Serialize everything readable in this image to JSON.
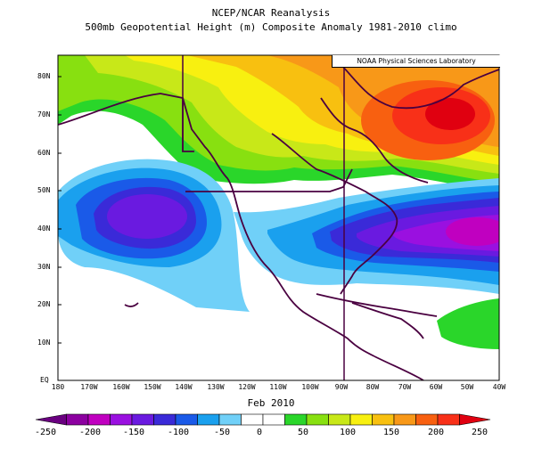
{
  "title_line1": "NCEP/NCAR Reanalysis",
  "title_line2": "500mb Geopotential Height (m) Composite Anomaly 1981-2010 climo",
  "credit": "NOAA Physical Sciences Laboratory",
  "date": "Feb 2010",
  "lat_labels": [
    "80N",
    "70N",
    "60N",
    "50N",
    "40N",
    "30N",
    "20N",
    "10N",
    "EQ"
  ],
  "lon_labels": [
    "180",
    "170W",
    "160W",
    "150W",
    "140W",
    "130W",
    "120W",
    "110W",
    "100W",
    "90W",
    "80W",
    "70W",
    "60W",
    "50W",
    "40W"
  ],
  "colorbar": {
    "labels": [
      "-250",
      "-200",
      "-150",
      "-100",
      "-50",
      "0",
      "50",
      "100",
      "150",
      "200",
      "250"
    ],
    "colors": [
      "#6a0080",
      "#8c00a0",
      "#c000c0",
      "#9a10e0",
      "#6a1ae0",
      "#3a2ad8",
      "#1a5ae8",
      "#1aa0ee",
      "#70d0f8",
      "#ffffff",
      "#ffffff",
      "#2ad62a",
      "#88e010",
      "#c8e818",
      "#f8f010",
      "#f8c010",
      "#f89818",
      "#f86010",
      "#f83018",
      "#e00010"
    ]
  },
  "map": {
    "lon_range": [
      180,
      40
    ],
    "lat_range": [
      0,
      85
    ],
    "field": "500mb geopotential height anomaly (m)",
    "features": [
      "positive anomaly over eastern Canada / Greenland",
      "negative anomaly over northeast Pacific",
      "negative anomaly over western Atlantic / southeastern US"
    ]
  }
}
